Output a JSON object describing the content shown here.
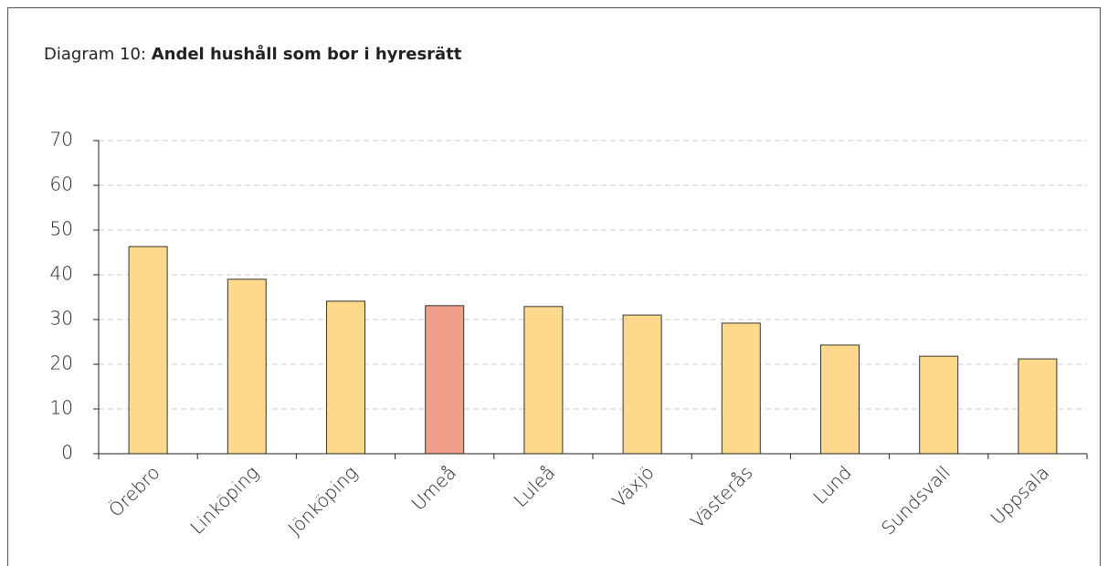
{
  "chart_data": {
    "type": "bar",
    "title_prefix": "Diagram 10:",
    "title": "Andel hushåll som bor i hyresrätt",
    "categories": [
      "Örebro",
      "Linköping",
      "Jönköping",
      "Umeå",
      "Luleå",
      "Växjö",
      "Västerås",
      "Lund",
      "Sundsvall",
      "Uppsala"
    ],
    "values": [
      46.3,
      39.0,
      34.1,
      33.1,
      32.9,
      31.0,
      29.2,
      24.3,
      21.8,
      21.2
    ],
    "colors": [
      "#fdd98b",
      "#fdd98b",
      "#fdd98b",
      "#f29f8a",
      "#fdd98b",
      "#fdd98b",
      "#fdd98b",
      "#fdd98b",
      "#fdd98b",
      "#fdd98b"
    ],
    "ylim": [
      0,
      70
    ],
    "yticks": [
      0,
      10,
      20,
      30,
      40,
      50,
      60,
      70
    ],
    "grid": true
  }
}
